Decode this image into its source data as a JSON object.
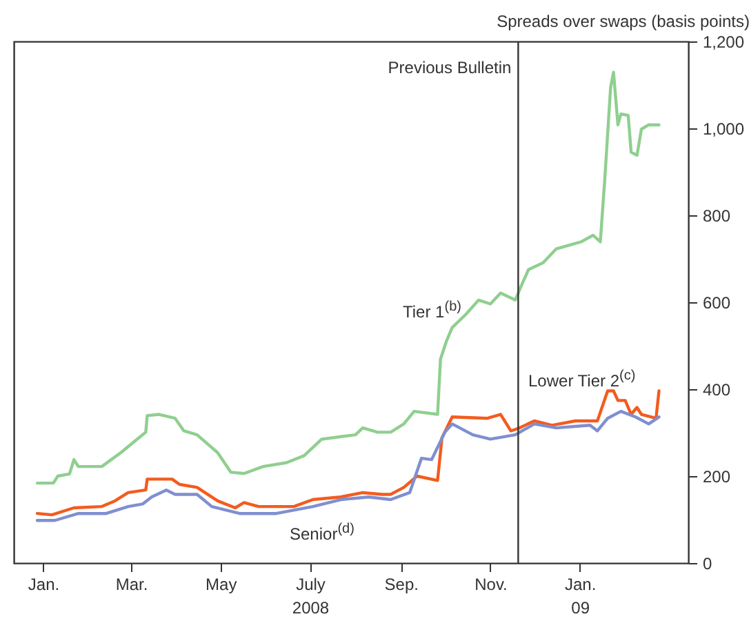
{
  "chart_data": {
    "type": "line",
    "ylabel": "Spreads over swaps (basis points)",
    "xlim": [
      "2007-12-12",
      "2009-03-16"
    ],
    "xticks": [
      {
        "value": "2008-01-01",
        "label": "Jan."
      },
      {
        "value": "2008-03-01",
        "label": "Mar."
      },
      {
        "value": "2008-05-01",
        "label": "May"
      },
      {
        "value": "2008-07-01",
        "label": "July\n2008"
      },
      {
        "value": "2008-09-01",
        "label": "Sep."
      },
      {
        "value": "2008-11-01",
        "label": "Nov."
      },
      {
        "value": "2009-01-01",
        "label": "Jan.\n09"
      }
    ],
    "ylim": [
      0,
      1200
    ],
    "yticks": [
      0,
      200,
      400,
      600,
      800,
      {
        "value": 1000,
        "label": "1,000"
      },
      {
        "value": 1200,
        "label": "1,200"
      }
    ],
    "grid": false,
    "legend": false,
    "marker": "none",
    "line_style": "solid",
    "ref_lines": [
      {
        "axis": "x",
        "value": "2008-11-20",
        "label": "Previous Bulletin"
      }
    ],
    "series": [
      {
        "name": "Tier 1$^{(b)}$",
        "color": "#8fcf8f",
        "x": [
          "2007-12-28",
          "2008-01-08",
          "2008-01-11",
          "2008-01-19",
          "2008-01-22",
          "2008-01-25",
          "2008-02-10",
          "2008-02-23",
          "2008-03-03",
          "2008-03-11",
          "2008-03-12",
          "2008-03-20",
          "2008-03-31",
          "2008-04-06",
          "2008-04-15",
          "2008-04-29",
          "2008-05-08",
          "2008-05-17",
          "2008-05-30",
          "2008-06-15",
          "2008-06-27",
          "2008-07-09",
          "2008-08-01",
          "2008-08-06",
          "2008-08-16",
          "2008-08-25",
          "2008-09-03",
          "2008-09-10",
          "2008-09-26",
          "2008-09-28",
          "2008-10-02",
          "2008-10-06",
          "2008-10-15",
          "2008-10-24",
          "2008-11-01",
          "2008-11-08",
          "2008-11-18",
          "2008-11-22",
          "2008-11-27",
          "2008-12-07",
          "2008-12-16",
          "2009-01-02",
          "2009-01-10",
          "2009-01-15",
          "2009-01-18",
          "2009-01-22",
          "2009-01-24",
          "2009-01-27",
          "2009-01-29",
          "2009-02-03",
          "2009-02-05",
          "2009-02-09",
          "2009-02-12",
          "2009-02-17",
          "2009-02-24"
        ],
        "values": [
          184,
          184,
          200,
          205,
          238,
          222,
          222,
          254,
          279,
          301,
          339,
          342,
          333,
          304,
          295,
          254,
          209,
          206,
          222,
          231,
          247,
          285,
          295,
          311,
          301,
          301,
          320,
          349,
          342,
          469,
          510,
          542,
          571,
          605,
          596,
          621,
          605,
          637,
          675,
          691,
          723,
          739,
          754,
          739,
          881,
          1094,
          1129,
          1008,
          1033,
          1030,
          945,
          938,
          998,
          1008,
          1008
        ]
      },
      {
        "name": "Lower Tier 2$^{(c)}$",
        "color": "#f25c1f",
        "x": [
          "2007-12-28",
          "2008-01-07",
          "2008-01-22",
          "2008-02-10",
          "2008-02-19",
          "2008-02-28",
          "2008-03-11",
          "2008-03-12",
          "2008-03-29",
          "2008-04-03",
          "2008-04-15",
          "2008-04-29",
          "2008-05-11",
          "2008-05-17",
          "2008-05-27",
          "2008-06-20",
          "2008-07-03",
          "2008-07-22",
          "2008-08-06",
          "2008-08-19",
          "2008-08-25",
          "2008-09-03",
          "2008-09-12",
          "2008-09-26",
          "2008-09-29",
          "2008-10-06",
          "2008-10-30",
          "2008-11-08",
          "2008-11-15",
          "2008-11-21",
          "2008-12-01",
          "2008-12-13",
          "2008-12-29",
          "2009-01-13",
          "2009-01-20",
          "2009-01-24",
          "2009-01-27",
          "2009-02-01",
          "2009-02-05",
          "2009-02-09",
          "2009-02-12",
          "2009-02-22",
          "2009-02-24"
        ],
        "values": [
          114,
          111,
          127,
          130,
          143,
          162,
          168,
          193,
          193,
          181,
          174,
          143,
          127,
          139,
          130,
          130,
          146,
          152,
          162,
          158,
          158,
          174,
          200,
          190,
          288,
          336,
          333,
          342,
          304,
          311,
          327,
          317,
          327,
          327,
          396,
          396,
          374,
          374,
          342,
          358,
          342,
          333,
          396
        ]
      },
      {
        "name": "Senior$^{(d)}$",
        "color": "#7f8fd0",
        "x": [
          "2007-12-28",
          "2008-01-09",
          "2008-01-25",
          "2008-02-13",
          "2008-02-28",
          "2008-03-09",
          "2008-03-15",
          "2008-03-25",
          "2008-03-31",
          "2008-04-15",
          "2008-04-25",
          "2008-05-14",
          "2008-06-08",
          "2008-07-03",
          "2008-07-22",
          "2008-08-10",
          "2008-08-25",
          "2008-09-07",
          "2008-09-15",
          "2008-09-22",
          "2008-10-01",
          "2008-10-06",
          "2008-10-20",
          "2008-11-01",
          "2008-11-18",
          "2008-12-01",
          "2008-12-16",
          "2009-01-08",
          "2009-01-13",
          "2009-01-20",
          "2009-01-29",
          "2009-02-08",
          "2009-02-17",
          "2009-02-24"
        ],
        "values": [
          98,
          98,
          114,
          114,
          130,
          136,
          152,
          168,
          158,
          158,
          130,
          114,
          114,
          130,
          146,
          152,
          146,
          162,
          241,
          238,
          301,
          320,
          295,
          285,
          295,
          320,
          311,
          317,
          304,
          333,
          349,
          336,
          320,
          336
        ]
      }
    ]
  }
}
